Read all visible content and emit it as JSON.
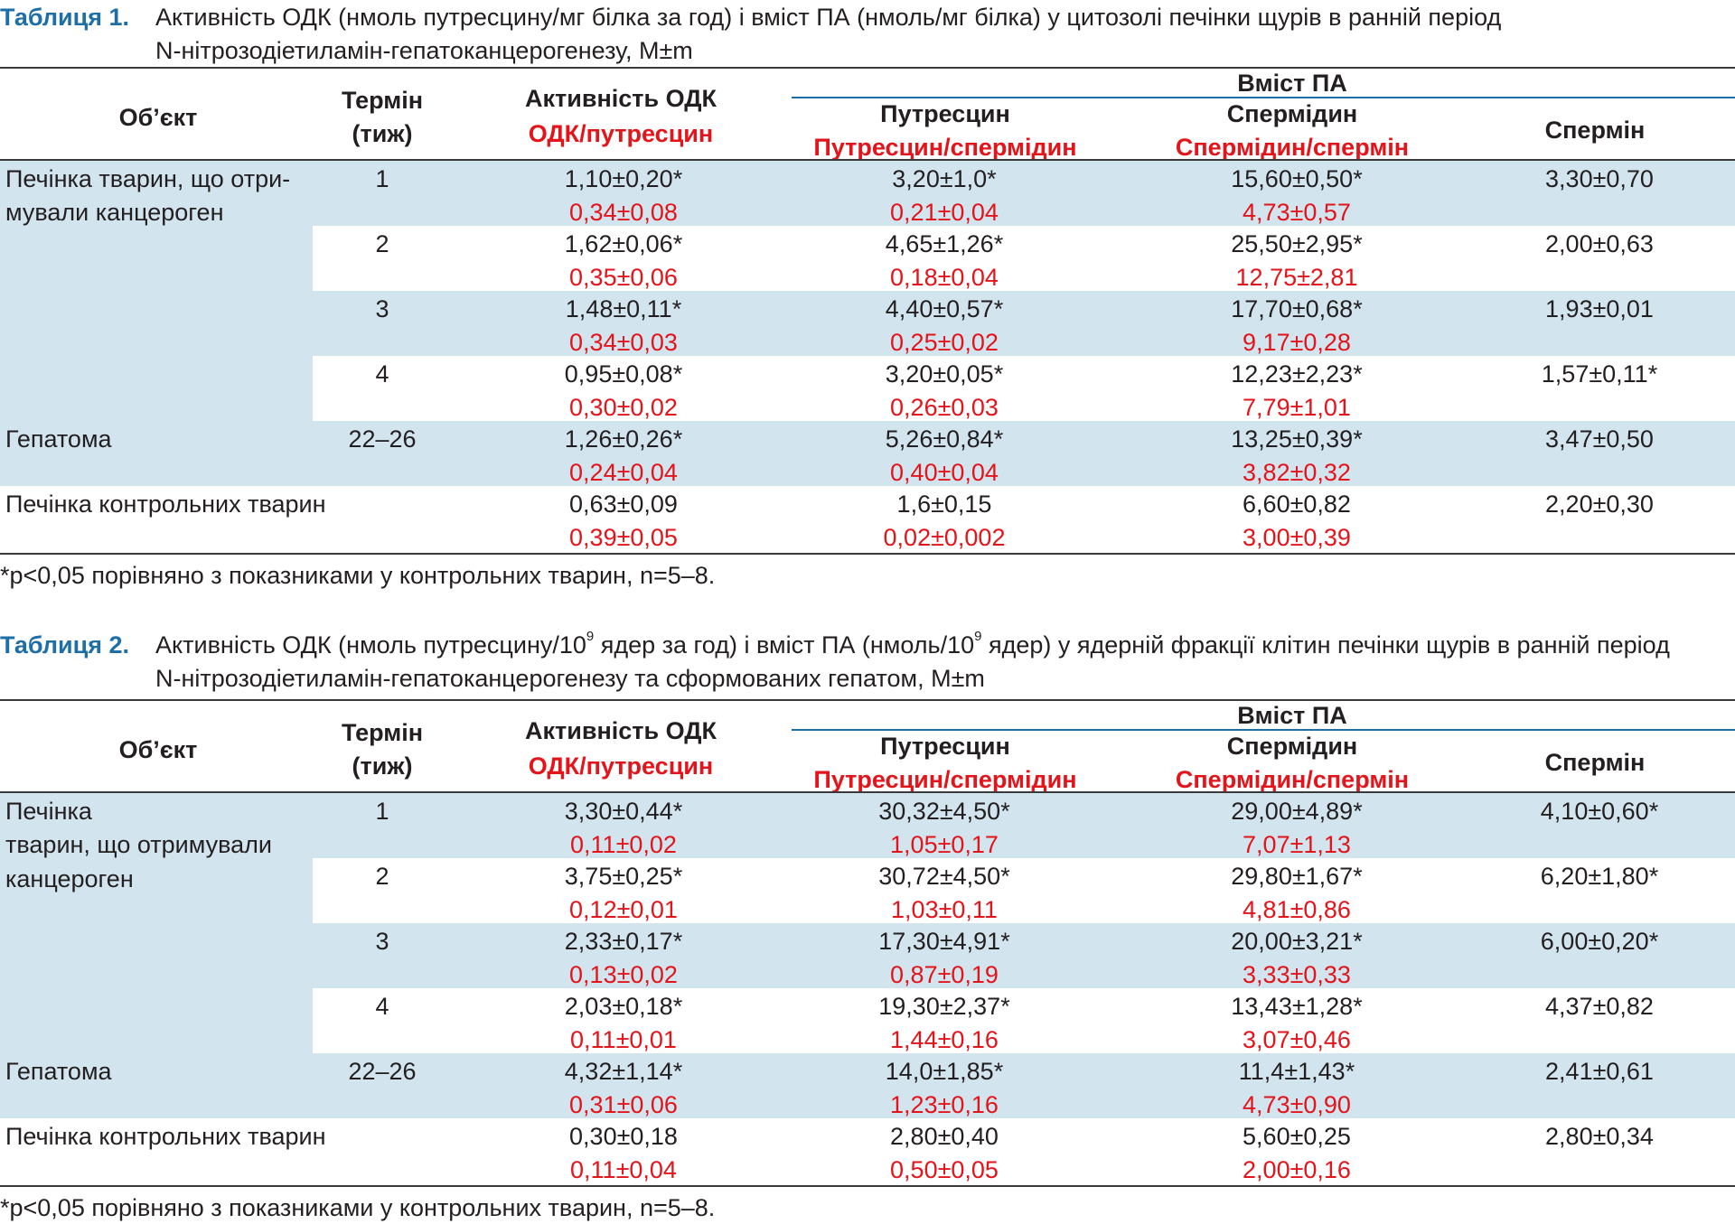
{
  "tables": [
    {
      "label": "Таблиця 1.",
      "caption_line1": "Активність ОДК (нмоль путресцину/мг білка за год) і вміст ПА (нмоль/мг білка) у цитозолі печінки щурів в ранній період",
      "caption_line2": "N-нітрозодіетиламін-гепатоканцерогенезу, M±m",
      "header": {
        "object": "Об’єкт",
        "term_line1": "Термін",
        "term_line2": "(тиж)",
        "odc": "Активність ОДК",
        "odc_ratio": "ОДК/путресцин",
        "pa_group": "Вміст ПА",
        "putrescine": "Путресцин",
        "putrescine_ratio": "Путресцин/спермідин",
        "spermidine": "Спермідин",
        "spermidine_ratio": "Спермідин/спермін",
        "spermine": "Спермін"
      },
      "object_labels": {
        "treated_line1": "Печінка тварин, що отри-",
        "treated_line2": "мували канцероген",
        "treated_line3": "",
        "hepatoma": "Гепатома",
        "control": "Печінка контрольних тварин"
      },
      "rows": [
        {
          "term": "1",
          "odc": "1,10±0,20*",
          "odc_ratio": "0,34±0,08",
          "put": "3,20±1,0*",
          "put_ratio": "0,21±0,04",
          "spd": "15,60±0,50*",
          "spd_ratio": "4,73±0,57",
          "spm": "3,30±0,70"
        },
        {
          "term": "2",
          "odc": "1,62±0,06*",
          "odc_ratio": "0,35±0,06",
          "put": "4,65±1,26*",
          "put_ratio": "0,18±0,04",
          "spd": "25,50±2,95*",
          "spd_ratio": "12,75±2,81",
          "spm": "2,00±0,63"
        },
        {
          "term": "3",
          "odc": "1,48±0,11*",
          "odc_ratio": "0,34±0,03",
          "put": "4,40±0,57*",
          "put_ratio": "0,25±0,02",
          "spd": "17,70±0,68*",
          "spd_ratio": "9,17±0,28",
          "spm": "1,93±0,01"
        },
        {
          "term": "4",
          "odc": "0,95±0,08*",
          "odc_ratio": "0,30±0,02",
          "put": "3,20±0,05*",
          "put_ratio": "0,26±0,03",
          "spd": "12,23±2,23*",
          "spd_ratio": "7,79±1,01",
          "spm": "1,57±0,11*"
        },
        {
          "term": "22–26",
          "odc": "1,26±0,26*",
          "odc_ratio": "0,24±0,04",
          "put": "5,26±0,84*",
          "put_ratio": "0,40±0,04",
          "spd": "13,25±0,39*",
          "spd_ratio": "3,82±0,32",
          "spm": "3,47±0,50"
        },
        {
          "term": "",
          "odc": "0,63±0,09",
          "odc_ratio": "0,39±0,05",
          "put": "1,6±0,15",
          "put_ratio": "0,02±0,002",
          "spd": "6,60±0,82",
          "spd_ratio": "3,00±0,39",
          "spm": "2,20±0,30"
        }
      ],
      "footnote": "*p<0,05 порівняно з показниками у контрольних тварин, n=5–8."
    },
    {
      "label": "Таблиця 2.",
      "caption_line1_a": "Активність ОДК (нмоль путресцину/10",
      "caption_sup": "9",
      "caption_line1_b": " ядер за год) і вміст ПА (нмоль/10",
      "caption_line1_c": " ядер) у ядерній фракції клітин печінки щурів в ранній період",
      "caption_line2": "N-нітрозодіетиламін-гепатоканцерогенезу та сформованих гепатом, M±m",
      "header": {
        "object": "Об’єкт",
        "term_line1": "Термін",
        "term_line2": "(тиж)",
        "odc": "Активність ОДК",
        "odc_ratio": "ОДК/путресцин",
        "pa_group": "Вміст ПА",
        "putrescine": "Путресцин",
        "putrescine_ratio": "Путресцин/спермідин",
        "spermidine": "Спермідин",
        "spermidine_ratio": "Спермідин/спермін",
        "spermine": "Спермін"
      },
      "object_labels": {
        "treated_line1": "Печінка",
        "treated_line2": "тварин, що отримували",
        "treated_line3": "канцероген",
        "hepatoma": "Гепатома",
        "control": "Печінка контрольних тварин"
      },
      "rows": [
        {
          "term": "1",
          "odc": "3,30±0,44*",
          "odc_ratio": "0,11±0,02",
          "put": "30,32±4,50*",
          "put_ratio": "1,05±0,17",
          "spd": "29,00±4,89*",
          "spd_ratio": "7,07±1,13",
          "spm": "4,10±0,60*"
        },
        {
          "term": "2",
          "odc": "3,75±0,25*",
          "odc_ratio": "0,12±0,01",
          "put": "30,72±4,50*",
          "put_ratio": "1,03±0,11",
          "spd": "29,80±1,67*",
          "spd_ratio": "4,81±0,86",
          "spm": "6,20±1,80*"
        },
        {
          "term": "3",
          "odc": "2,33±0,17*",
          "odc_ratio": "0,13±0,02",
          "put": "17,30±4,91*",
          "put_ratio": "0,87±0,19",
          "spd": "20,00±3,21*",
          "spd_ratio": "3,33±0,33",
          "spm": "6,00±0,20*"
        },
        {
          "term": "4",
          "odc": "2,03±0,18*",
          "odc_ratio": "0,11±0,01",
          "put": "19,30±2,37*",
          "put_ratio": "1,44±0,16",
          "spd": "13,43±1,28*",
          "spd_ratio": "3,07±0,46",
          "spm": "4,37±0,82"
        },
        {
          "term": "22–26",
          "odc": "4,32±1,14*",
          "odc_ratio": "0,31±0,06",
          "put": "14,0±1,85*",
          "put_ratio": "1,23±0,16",
          "spd": "11,4±1,43*",
          "spd_ratio": "4,73±0,90",
          "spm": "2,41±0,61"
        },
        {
          "term": "",
          "odc": "0,30±0,18",
          "odc_ratio": "0,11±0,04",
          "put": "2,80±0,40",
          "put_ratio": "0,50±0,05",
          "spd": "5,60±0,25",
          "spd_ratio": "2,00±0,16",
          "spm": "2,80±0,34"
        }
      ],
      "footnote": "*p<0,05 порівняно з показниками у контрольних тварин, n=5–8."
    }
  ],
  "colors": {
    "accent": "#1e6fa8",
    "ratio_red": "#e4141b",
    "band": "#d2e4ee",
    "text": "#231f20"
  }
}
